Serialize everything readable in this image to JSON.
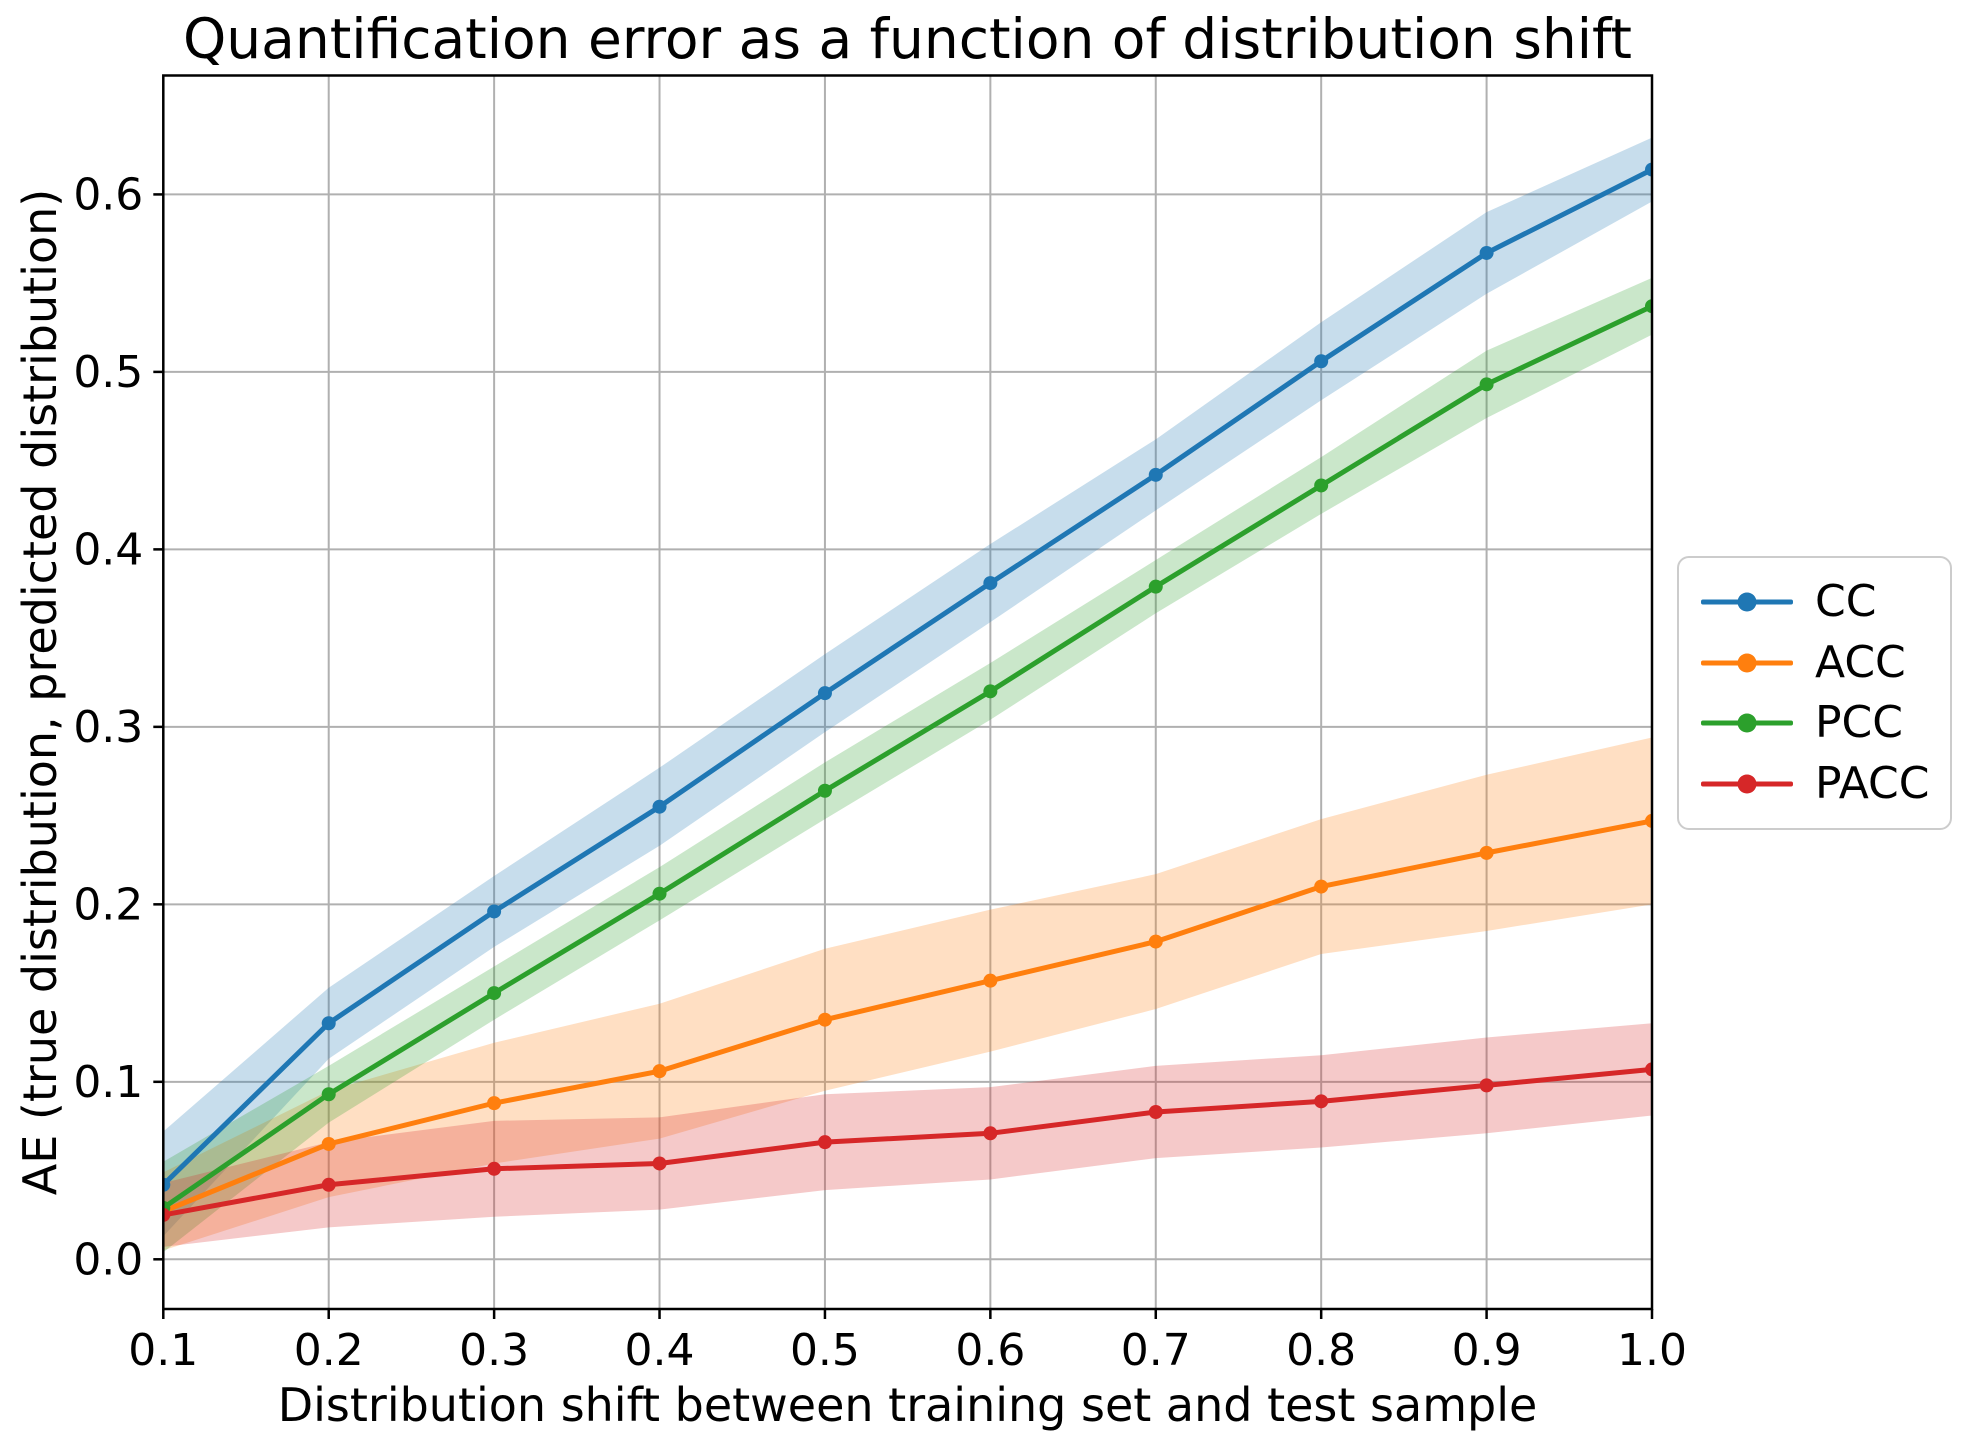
{
  "title": "Quantification error as a function of distribution shift",
  "axes": {
    "x_label": "Distribution shift between training set and test sample",
    "y_label": "AE (true distribution, predicted distribution)",
    "x_tick_labels": [
      "0.1",
      "0.2",
      "0.3",
      "0.4",
      "0.5",
      "0.6",
      "0.7",
      "0.8",
      "0.9",
      "1.0"
    ],
    "y_tick_labels": [
      "0.0",
      "0.1",
      "0.2",
      "0.3",
      "0.4",
      "0.5",
      "0.6"
    ],
    "x_tick_values": [
      0.1,
      0.2,
      0.3,
      0.4,
      0.5,
      0.6,
      0.7,
      0.8,
      0.9,
      1.0
    ],
    "y_tick_values": [
      0.0,
      0.1,
      0.2,
      0.3,
      0.4,
      0.5,
      0.6
    ],
    "grid_color": "#b0b0b0",
    "spine_color": "#000000",
    "tick_color": "#000000",
    "text_color": "#000000"
  },
  "legend": {
    "position": "right-outside",
    "border_color": "#cccccc",
    "background": "#ffffff"
  },
  "chart_data": {
    "type": "line",
    "title": "Quantification error as a function of distribution shift",
    "xlabel": "Distribution shift between training set and test sample",
    "ylabel": "AE (true distribution, predicted distribution)",
    "x": [
      0.1,
      0.2,
      0.3,
      0.4,
      0.5,
      0.6,
      0.7,
      0.8,
      0.9,
      1.0
    ],
    "xlim": [
      0.1,
      1.0
    ],
    "ylim": [
      -0.028,
      0.667
    ],
    "grid": true,
    "legend_position": "center right outside",
    "band_opacity": 0.25,
    "marker": "circle",
    "series": [
      {
        "name": "CC",
        "color": "#1f77b4",
        "values": [
          0.042,
          0.133,
          0.196,
          0.255,
          0.319,
          0.381,
          0.442,
          0.506,
          0.567,
          0.614
        ],
        "band_upper": [
          0.072,
          0.153,
          0.216,
          0.277,
          0.341,
          0.403,
          0.462,
          0.528,
          0.59,
          0.632
        ],
        "band_lower": [
          0.013,
          0.113,
          0.176,
          0.233,
          0.297,
          0.359,
          0.422,
          0.484,
          0.544,
          0.596
        ]
      },
      {
        "name": "ACC",
        "color": "#ff7f0e",
        "values": [
          0.027,
          0.065,
          0.088,
          0.106,
          0.135,
          0.157,
          0.179,
          0.21,
          0.229,
          0.247
        ],
        "band_upper": [
          0.049,
          0.095,
          0.122,
          0.144,
          0.175,
          0.197,
          0.217,
          0.248,
          0.273,
          0.294
        ],
        "band_lower": [
          0.005,
          0.035,
          0.054,
          0.068,
          0.095,
          0.117,
          0.141,
          0.172,
          0.185,
          0.2
        ]
      },
      {
        "name": "PCC",
        "color": "#2ca02c",
        "values": [
          0.029,
          0.093,
          0.15,
          0.206,
          0.264,
          0.32,
          0.379,
          0.436,
          0.493,
          0.537
        ],
        "band_upper": [
          0.055,
          0.109,
          0.165,
          0.221,
          0.28,
          0.336,
          0.394,
          0.452,
          0.512,
          0.553
        ],
        "band_lower": [
          0.004,
          0.077,
          0.135,
          0.191,
          0.248,
          0.304,
          0.364,
          0.42,
          0.474,
          0.521
        ]
      },
      {
        "name": "PACC",
        "color": "#d62728",
        "values": [
          0.025,
          0.042,
          0.051,
          0.054,
          0.066,
          0.071,
          0.083,
          0.089,
          0.098,
          0.107
        ],
        "band_upper": [
          0.043,
          0.066,
          0.078,
          0.08,
          0.093,
          0.097,
          0.109,
          0.115,
          0.125,
          0.133
        ],
        "band_lower": [
          0.007,
          0.018,
          0.024,
          0.028,
          0.039,
          0.045,
          0.057,
          0.063,
          0.071,
          0.081
        ]
      }
    ]
  }
}
